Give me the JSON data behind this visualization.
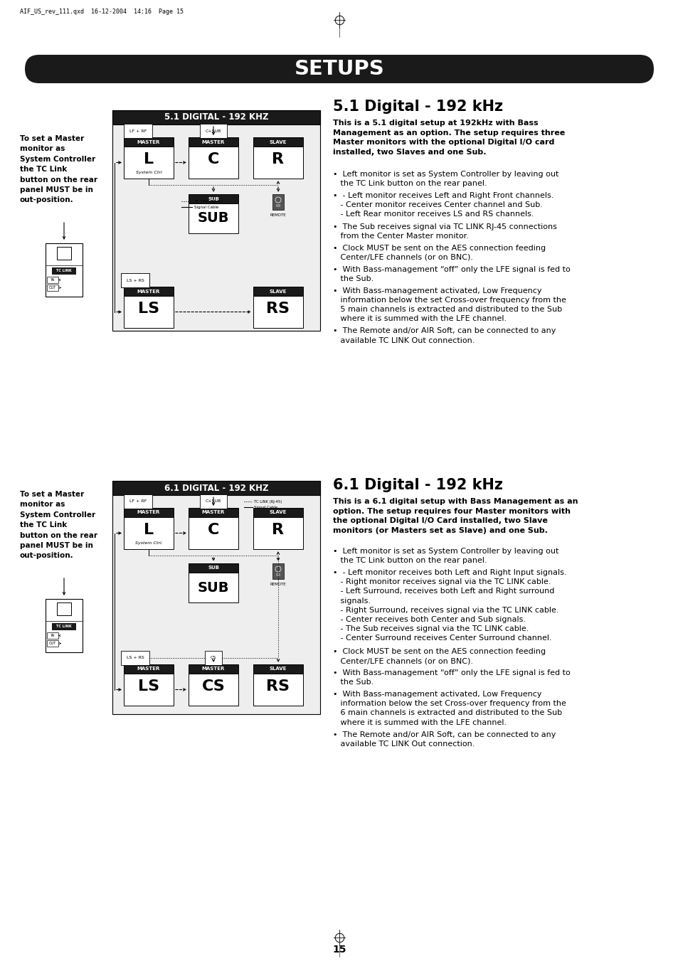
{
  "page_bg": "#ffffff",
  "header_text": "AIF_US_rev_111.qxd  16-12-2004  14:16  Page 15",
  "banner_text": "SETUPS",
  "banner_bg": "#1a1a1a",
  "section1_title": "5.1 Digital - 192 kHz",
  "section1_diagram_title": "5.1 DIGITAL - 192 KHZ",
  "section1_intro": "This is a 5.1 digital setup at 192kHz with Bass\nManagement as an option. The setup requires three\nMaster monitors with the optional Digital I/O card\ninstalled, two Slaves and one Sub.",
  "section1_bullets": [
    "•  Left monitor is set as System Controller by leaving out\n   the TC Link button on the rear panel.",
    "•  - Left monitor receives Left and Right Front channels.\n   - Center monitor receives Center channel and Sub.\n   - Left Rear monitor receives LS and RS channels.",
    "•  The Sub receives signal via TC LINK RJ-45 connections\n   from the Center Master monitor.",
    "•  Clock MUST be sent on the AES connection feeding\n   Center/LFE channels (or on BNC).",
    "•  With Bass-management “off” only the LFE signal is fed to\n   the Sub.",
    "•  With Bass-management activated, Low Frequency\n   information below the set Cross-over frequency from the\n   5 main channels is extracted and distributed to the Sub\n   where it is summed with the LFE channel.",
    "•  The Remote and/or AIR Soft, can be connected to any\n   available TC LINK Out connection."
  ],
  "section1_left_text": "To set a Master\nmonitor as\nSystem Controller\nthe TC Link\nbutton on the rear\npanel MUST be in\nout-position.",
  "section2_title": "6.1 Digital - 192 kHz",
  "section2_diagram_title": "6.1 DIGITAL - 192 KHZ",
  "section2_intro": "This is a 6.1 digital setup with Bass Management as an\noption. The setup requires four Master monitors with\nthe optional Digital I/O Card installed, two Slave\nmonitors (or Masters set as Slave) and one Sub.",
  "section2_bullets": [
    "•  Left monitor is set as System Controller by leaving out\n   the TC Link button on the rear panel.",
    "•  - Left monitor receives both Left and Right Input signals.\n   - Right monitor receives signal via the TC LINK cable.\n   - Left Surround, receives both Left and Right surround\n   signals.\n   - Right Surround, receives signal via the TC LINK cable.\n   - Center receives both Center and Sub signals.\n   - The Sub receives signal via the TC LINK cable.\n   - Center Surround receives Center Surround channel.",
    "•  Clock MUST be sent on the AES connection feeding\n   Center/LFE channels (or on BNC).",
    "•  With Bass-management “off” only the LFE signal is fed to\n   the Sub.",
    "•  With Bass-management activated, Low Frequency\n   information below the set Cross-over frequency from the\n   6 main channels is extracted and distributed to the Sub\n   where it is summed with the LFE channel.",
    "•  The Remote and/or AIR Soft, can be connected to any\n   available TC LINK Out connection."
  ],
  "section2_left_text": "To set a Master\nmonitor as\nSystem Controller\nthe TC Link\nbutton on the rear\npanel MUST be in\nout-position.",
  "page_number": "15",
  "dark_bg": "#1a1a1a",
  "white": "#ffffff",
  "black": "#000000"
}
